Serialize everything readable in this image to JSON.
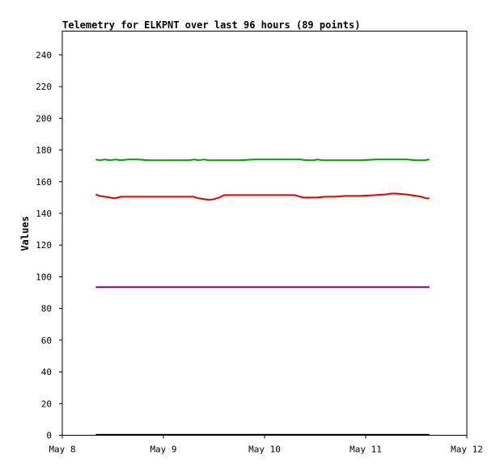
{
  "chart_data": {
    "type": "line",
    "title": "Telemetry for ELKPNT over last 96 hours (89 points)",
    "xlabel": "",
    "ylabel": "Values",
    "x_ticks": [
      "May 8",
      "May 9",
      "May 10",
      "May 11",
      "May 12"
    ],
    "x_range_days": [
      0,
      4
    ],
    "y_ticks": [
      0,
      20,
      40,
      60,
      80,
      100,
      120,
      140,
      160,
      180,
      200,
      220,
      240
    ],
    "ylim": [
      0,
      255
    ],
    "grid": false,
    "legend": "none",
    "series": [
      {
        "color": "#00a000",
        "x": [
          0.33,
          0.37,
          0.42,
          0.47,
          0.52,
          0.58,
          0.65,
          0.75,
          0.85,
          0.95,
          1.05,
          1.15,
          1.25,
          1.3,
          1.35,
          1.4,
          1.45,
          1.5,
          1.6,
          1.75,
          1.9,
          2.05,
          2.2,
          2.35,
          2.42,
          2.48,
          2.53,
          2.57,
          2.62,
          2.7,
          2.8,
          2.95,
          3.1,
          3.25,
          3.4,
          3.52,
          3.58,
          3.63
        ],
        "y": [
          174,
          173.5,
          174,
          173.5,
          174,
          173.5,
          174,
          174,
          173.5,
          173.5,
          173.5,
          173.5,
          173.5,
          174,
          173.5,
          174,
          173.5,
          173.5,
          173.5,
          173.5,
          174,
          174,
          174,
          174,
          173.5,
          173.5,
          174,
          173.5,
          173.5,
          173.5,
          173.5,
          173.5,
          174,
          174,
          174,
          173.5,
          173.5,
          174
        ]
      },
      {
        "color": "#e00000",
        "x": [
          0.33,
          0.37,
          0.42,
          0.47,
          0.52,
          0.58,
          0.65,
          0.75,
          0.9,
          1.05,
          1.2,
          1.3,
          1.35,
          1.4,
          1.45,
          1.5,
          1.55,
          1.6,
          1.75,
          1.9,
          2.05,
          2.2,
          2.3,
          2.38,
          2.45,
          2.52,
          2.6,
          2.7,
          2.8,
          2.95,
          3.1,
          3.2,
          3.25,
          3.3,
          3.4,
          3.5,
          3.55,
          3.6,
          3.63
        ],
        "y": [
          152,
          151,
          150.5,
          150,
          149.5,
          150.5,
          150.5,
          150.5,
          150.5,
          150.5,
          150.5,
          150.5,
          149.5,
          149,
          148.5,
          149,
          150,
          151.5,
          151.5,
          151.5,
          151.5,
          151.5,
          151.5,
          150,
          150,
          150,
          150.5,
          150.5,
          151,
          151,
          151.5,
          152,
          152.5,
          152.5,
          152,
          151,
          150.5,
          149.5,
          149.5
        ]
      },
      {
        "color": "#800080",
        "x": [
          0.33,
          3.63
        ],
        "y": [
          93.5,
          93.5
        ]
      },
      {
        "color": "#000000",
        "x": [
          0.33,
          3.63
        ],
        "y": [
          0.3,
          0.3
        ]
      }
    ]
  }
}
